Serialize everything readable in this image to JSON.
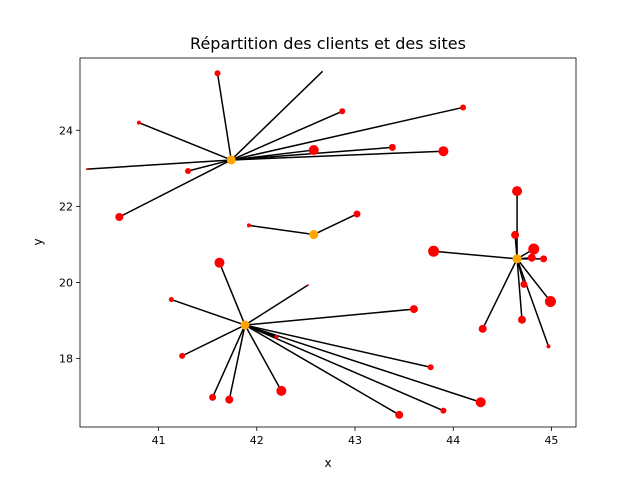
{
  "chart_data": {
    "type": "scatter",
    "title": "Répartition des clients et des sites",
    "xlabel": "x",
    "ylabel": "y",
    "xlim": [
      40.2,
      45.25
    ],
    "ylim": [
      16.2,
      25.9
    ],
    "xticks": [
      41,
      42,
      43,
      44,
      45
    ],
    "yticks": [
      18,
      20,
      22,
      24
    ],
    "xtick_labels": [
      "41",
      "42",
      "43",
      "44",
      "45"
    ],
    "ytick_labels": [
      "18",
      "20",
      "22",
      "24"
    ],
    "grid": false,
    "legend": false,
    "colors": {
      "client": "#ff0000",
      "site": "#ffa500",
      "link": "#000000",
      "frame": "#000000"
    },
    "sites": [
      {
        "x": 41.74,
        "y": 23.22
      },
      {
        "x": 42.58,
        "y": 21.26
      },
      {
        "x": 44.65,
        "y": 20.62
      },
      {
        "x": 41.88,
        "y": 18.88
      }
    ],
    "clients": [
      {
        "x": 41.6,
        "y": 25.5,
        "size": 3,
        "site": 0
      },
      {
        "x": 42.67,
        "y": 25.55,
        "size": 0,
        "site": 0
      },
      {
        "x": 42.87,
        "y": 24.5,
        "size": 3,
        "site": 0
      },
      {
        "x": 44.1,
        "y": 24.6,
        "size": 3,
        "site": 0
      },
      {
        "x": 40.8,
        "y": 24.2,
        "size": 2,
        "site": 0
      },
      {
        "x": 42.58,
        "y": 23.48,
        "size": 5,
        "site": 0
      },
      {
        "x": 43.38,
        "y": 23.55,
        "size": 3.5,
        "site": 0
      },
      {
        "x": 43.9,
        "y": 23.45,
        "size": 5,
        "site": 0
      },
      {
        "x": 41.3,
        "y": 22.93,
        "size": 3,
        "site": 0
      },
      {
        "x": 40.27,
        "y": 22.98,
        "size": 1,
        "site": 0
      },
      {
        "x": 40.6,
        "y": 21.72,
        "size": 4,
        "site": 0
      },
      {
        "x": 41.92,
        "y": 21.5,
        "size": 2,
        "site": 1
      },
      {
        "x": 43.02,
        "y": 21.8,
        "size": 3.5,
        "site": 1
      },
      {
        "x": 44.65,
        "y": 22.4,
        "size": 5,
        "site": 2
      },
      {
        "x": 44.63,
        "y": 21.25,
        "size": 4,
        "site": 2
      },
      {
        "x": 43.8,
        "y": 20.82,
        "size": 5.5,
        "site": 2
      },
      {
        "x": 44.82,
        "y": 20.88,
        "size": 5.5,
        "site": 2
      },
      {
        "x": 44.8,
        "y": 20.65,
        "size": 4,
        "site": 2
      },
      {
        "x": 44.92,
        "y": 20.62,
        "size": 3.5,
        "site": 2
      },
      {
        "x": 44.72,
        "y": 19.95,
        "size": 3.5,
        "site": 2
      },
      {
        "x": 44.99,
        "y": 19.5,
        "size": 5.5,
        "site": 2
      },
      {
        "x": 44.3,
        "y": 18.78,
        "size": 4,
        "site": 2
      },
      {
        "x": 44.7,
        "y": 19.02,
        "size": 4,
        "site": 2
      },
      {
        "x": 44.97,
        "y": 18.32,
        "size": 2,
        "site": 2
      },
      {
        "x": 41.62,
        "y": 20.52,
        "size": 5,
        "site": 3
      },
      {
        "x": 42.52,
        "y": 19.93,
        "size": 1,
        "site": 3
      },
      {
        "x": 41.13,
        "y": 19.55,
        "size": 2.5,
        "site": 3
      },
      {
        "x": 43.6,
        "y": 19.3,
        "size": 4,
        "site": 3
      },
      {
        "x": 41.24,
        "y": 18.07,
        "size": 3,
        "site": 3
      },
      {
        "x": 42.2,
        "y": 18.57,
        "size": 2,
        "site": 3
      },
      {
        "x": 43.77,
        "y": 17.77,
        "size": 3,
        "site": 3
      },
      {
        "x": 41.55,
        "y": 16.98,
        "size": 3.5,
        "site": 3
      },
      {
        "x": 41.72,
        "y": 16.92,
        "size": 4,
        "site": 3
      },
      {
        "x": 42.25,
        "y": 17.15,
        "size": 5,
        "site": 3
      },
      {
        "x": 44.28,
        "y": 16.85,
        "size": 5,
        "site": 3
      },
      {
        "x": 43.45,
        "y": 16.52,
        "size": 4,
        "site": 3
      },
      {
        "x": 43.9,
        "y": 16.63,
        "size": 3,
        "site": 3
      }
    ]
  }
}
